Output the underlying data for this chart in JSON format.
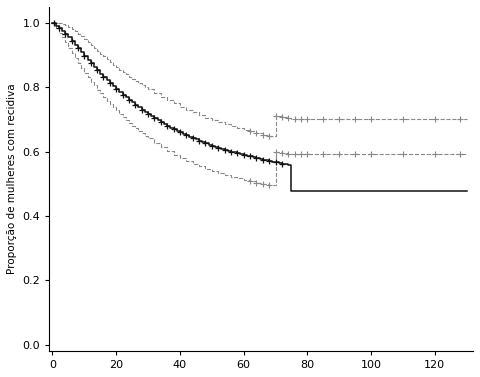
{
  "ylabel": "Proporção de mulheres com recidiva",
  "xlabel": "",
  "xlim": [
    -1,
    132
  ],
  "ylim": [
    -0.02,
    1.05
  ],
  "xticks": [
    0,
    20,
    40,
    60,
    80,
    100,
    120
  ],
  "yticks": [
    0.0,
    0.2,
    0.4,
    0.6,
    0.8,
    1.0
  ],
  "background_color": "#ffffff",
  "km_t": [
    0,
    1,
    2,
    3,
    4,
    5,
    6,
    7,
    8,
    9,
    10,
    11,
    12,
    13,
    14,
    15,
    16,
    17,
    18,
    19,
    20,
    21,
    22,
    23,
    24,
    25,
    26,
    27,
    28,
    29,
    30,
    31,
    32,
    33,
    34,
    35,
    36,
    37,
    38,
    39,
    40,
    41,
    42,
    43,
    44,
    45,
    46,
    47,
    48,
    49,
    50,
    51,
    52,
    53,
    54,
    55,
    56,
    57,
    58,
    59,
    60,
    61,
    62,
    63,
    64,
    65,
    66,
    67,
    68,
    69,
    70,
    71,
    72,
    73,
    74,
    75,
    130
  ],
  "km_s": [
    1.0,
    0.992,
    0.984,
    0.976,
    0.966,
    0.955,
    0.944,
    0.933,
    0.921,
    0.909,
    0.897,
    0.886,
    0.875,
    0.864,
    0.853,
    0.843,
    0.833,
    0.823,
    0.813,
    0.804,
    0.795,
    0.786,
    0.777,
    0.769,
    0.761,
    0.753,
    0.745,
    0.738,
    0.731,
    0.724,
    0.717,
    0.711,
    0.704,
    0.698,
    0.692,
    0.686,
    0.681,
    0.675,
    0.67,
    0.665,
    0.66,
    0.655,
    0.651,
    0.646,
    0.642,
    0.638,
    0.634,
    0.63,
    0.626,
    0.622,
    0.619,
    0.616,
    0.612,
    0.609,
    0.606,
    0.603,
    0.6,
    0.598,
    0.595,
    0.592,
    0.59,
    0.587,
    0.585,
    0.582,
    0.58,
    0.578,
    0.575,
    0.573,
    0.571,
    0.569,
    0.567,
    0.565,
    0.563,
    0.561,
    0.559,
    0.478,
    0.478
  ],
  "ci_up_t": [
    0,
    1,
    2,
    3,
    4,
    5,
    6,
    7,
    8,
    9,
    10,
    11,
    12,
    13,
    14,
    15,
    16,
    17,
    18,
    19,
    20,
    21,
    22,
    23,
    24,
    25,
    26,
    27,
    28,
    29,
    30,
    32,
    34,
    36,
    38,
    40,
    42,
    44,
    46,
    48,
    50,
    52,
    54,
    56,
    58,
    60,
    62,
    64,
    66,
    68,
    70,
    72,
    74,
    75,
    130
  ],
  "ci_up_s": [
    1.0,
    1.0,
    0.999,
    0.997,
    0.993,
    0.988,
    0.982,
    0.975,
    0.967,
    0.959,
    0.95,
    0.941,
    0.932,
    0.923,
    0.914,
    0.905,
    0.896,
    0.887,
    0.879,
    0.871,
    0.863,
    0.855,
    0.847,
    0.84,
    0.833,
    0.826,
    0.819,
    0.812,
    0.806,
    0.8,
    0.794,
    0.782,
    0.771,
    0.76,
    0.75,
    0.74,
    0.731,
    0.722,
    0.714,
    0.706,
    0.699,
    0.692,
    0.685,
    0.679,
    0.673,
    0.668,
    0.663,
    0.658,
    0.653,
    0.649,
    0.712,
    0.709,
    0.706,
    0.703,
    0.703
  ],
  "ci_lo_t": [
    0,
    1,
    2,
    3,
    4,
    5,
    6,
    7,
    8,
    9,
    10,
    11,
    12,
    13,
    14,
    15,
    16,
    17,
    18,
    19,
    20,
    21,
    22,
    23,
    24,
    25,
    26,
    27,
    28,
    29,
    30,
    32,
    34,
    36,
    38,
    40,
    42,
    44,
    46,
    48,
    50,
    52,
    54,
    56,
    58,
    60,
    62,
    64,
    66,
    68,
    70,
    72,
    74,
    75,
    130
  ],
  "ci_lo_s": [
    1.0,
    0.984,
    0.97,
    0.956,
    0.94,
    0.923,
    0.906,
    0.891,
    0.876,
    0.86,
    0.845,
    0.831,
    0.818,
    0.806,
    0.793,
    0.781,
    0.77,
    0.759,
    0.748,
    0.738,
    0.728,
    0.718,
    0.708,
    0.699,
    0.69,
    0.681,
    0.673,
    0.664,
    0.657,
    0.649,
    0.641,
    0.627,
    0.614,
    0.602,
    0.591,
    0.581,
    0.571,
    0.562,
    0.554,
    0.546,
    0.539,
    0.533,
    0.527,
    0.521,
    0.517,
    0.513,
    0.508,
    0.504,
    0.5,
    0.497,
    0.6,
    0.597,
    0.594,
    0.592,
    0.592
  ],
  "cens_main_t": [
    0.5,
    2,
    4,
    6,
    8,
    10,
    12,
    14,
    16,
    18,
    20,
    22,
    24,
    26,
    28,
    30,
    32,
    34,
    36,
    38,
    40,
    42,
    44,
    46,
    48,
    50,
    52,
    54,
    56,
    58,
    60,
    62,
    64,
    66,
    68,
    70,
    72
  ],
  "cens_up_t": [
    62,
    64,
    66,
    68,
    70,
    72,
    74,
    76,
    78,
    80,
    85,
    90,
    95,
    100,
    110,
    120,
    128
  ],
  "cens_lo_t": [
    62,
    64,
    66,
    68,
    70,
    72,
    74,
    76,
    78,
    80,
    85,
    90,
    95,
    100,
    110,
    120,
    128
  ]
}
